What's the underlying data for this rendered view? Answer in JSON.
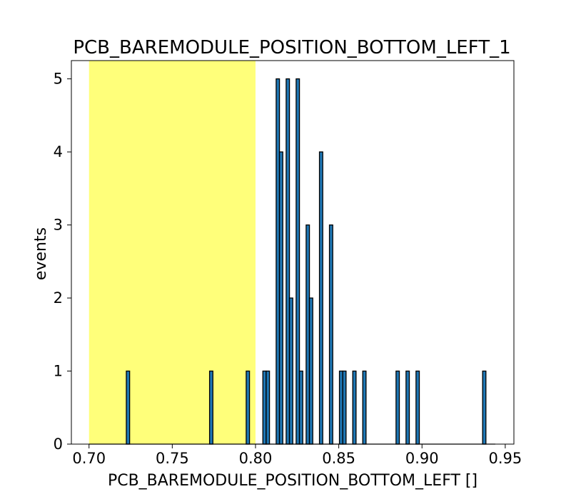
{
  "chart_data": {
    "type": "bar",
    "title": "PCB_BAREMODULE_POSITION_BOTTOM_LEFT_1",
    "xlabel": "PCB_BAREMODULE_POSITION_BOTTOM_LEFT []",
    "ylabel": "events",
    "xlim": [
      0.6894,
      0.9552
    ],
    "ylim": [
      0,
      5.25
    ],
    "xticks": [
      0.7,
      0.75,
      0.8,
      0.85,
      0.9,
      0.95
    ],
    "xtick_labels": [
      "0.70",
      "0.75",
      "0.80",
      "0.85",
      "0.90",
      "0.95"
    ],
    "yticks": [
      0,
      1,
      2,
      3,
      4,
      5
    ],
    "ytick_labels": [
      "0",
      "1",
      "2",
      "3",
      "4",
      "5"
    ],
    "highlight_band": {
      "from": 0.7,
      "to": 0.8,
      "color": "#ffff7a"
    },
    "bar_color": "#1f77b4",
    "range": [
      0.7,
      0.944
    ],
    "bin_width": 0.002,
    "bins": [
      {
        "x": 0.7224,
        "count": 1
      },
      {
        "x": 0.7724,
        "count": 1
      },
      {
        "x": 0.7944,
        "count": 1
      },
      {
        "x": 0.8044,
        "count": 1
      },
      {
        "x": 0.8064,
        "count": 1
      },
      {
        "x": 0.8124,
        "count": 5
      },
      {
        "x": 0.8144,
        "count": 4
      },
      {
        "x": 0.8184,
        "count": 5
      },
      {
        "x": 0.8204,
        "count": 2
      },
      {
        "x": 0.8244,
        "count": 5
      },
      {
        "x": 0.8264,
        "count": 1
      },
      {
        "x": 0.8304,
        "count": 3
      },
      {
        "x": 0.8324,
        "count": 2
      },
      {
        "x": 0.8384,
        "count": 4
      },
      {
        "x": 0.8444,
        "count": 3
      },
      {
        "x": 0.8504,
        "count": 1
      },
      {
        "x": 0.8524,
        "count": 1
      },
      {
        "x": 0.8584,
        "count": 1
      },
      {
        "x": 0.8644,
        "count": 1
      },
      {
        "x": 0.8844,
        "count": 1
      },
      {
        "x": 0.8904,
        "count": 1
      },
      {
        "x": 0.8964,
        "count": 1
      },
      {
        "x": 0.9364,
        "count": 1
      }
    ]
  }
}
